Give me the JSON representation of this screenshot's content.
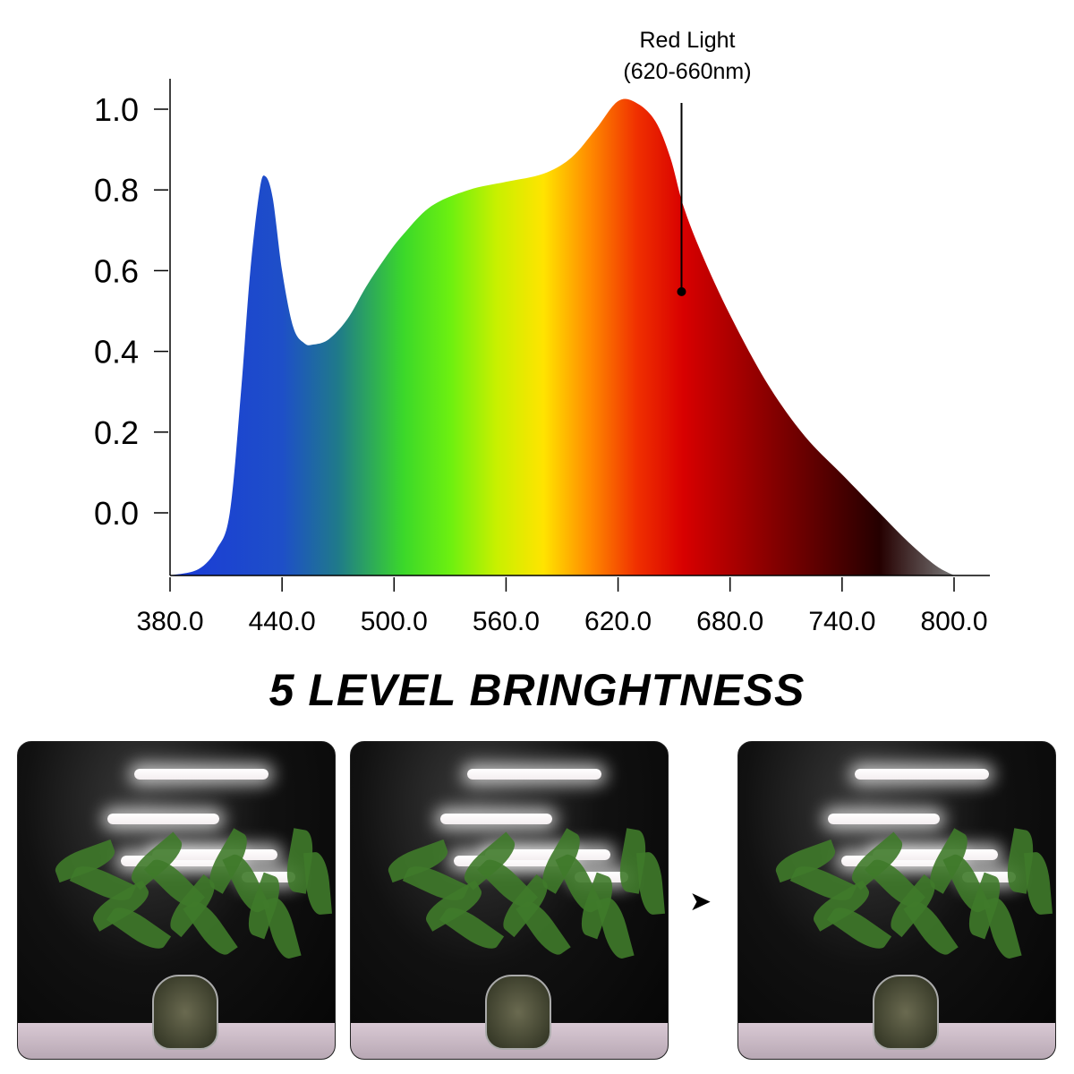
{
  "chart_data": {
    "type": "area",
    "xlim": [
      380,
      820
    ],
    "ylim": [
      -0.155,
      1.07
    ],
    "x_ticks": [
      "380.0",
      "440.0",
      "500.0",
      "560.0",
      "620.0",
      "680.0",
      "740.0",
      "800.0"
    ],
    "y_ticks": [
      "0.0",
      "0.2",
      "0.4",
      "0.6",
      "0.8",
      "1.0"
    ],
    "grid": false,
    "points": [
      [
        380,
        -0.155
      ],
      [
        395,
        -0.14
      ],
      [
        405,
        -0.09
      ],
      [
        412,
        0.0
      ],
      [
        418,
        0.3
      ],
      [
        423,
        0.6
      ],
      [
        428,
        0.8
      ],
      [
        431,
        0.834
      ],
      [
        435,
        0.78
      ],
      [
        440,
        0.6
      ],
      [
        446,
        0.46
      ],
      [
        452,
        0.42
      ],
      [
        457,
        0.417
      ],
      [
        465,
        0.43
      ],
      [
        475,
        0.48
      ],
      [
        485,
        0.56
      ],
      [
        495,
        0.63
      ],
      [
        505,
        0.69
      ],
      [
        520,
        0.76
      ],
      [
        540,
        0.8
      ],
      [
        560,
        0.82
      ],
      [
        580,
        0.84
      ],
      [
        595,
        0.88
      ],
      [
        608,
        0.95
      ],
      [
        620,
        1.02
      ],
      [
        630,
        1.015
      ],
      [
        640,
        0.97
      ],
      [
        648,
        0.88
      ],
      [
        655,
        0.76
      ],
      [
        665,
        0.64
      ],
      [
        680,
        0.49
      ],
      [
        700,
        0.32
      ],
      [
        720,
        0.19
      ],
      [
        740,
        0.095
      ],
      [
        760,
        0.0
      ],
      [
        775,
        -0.07
      ],
      [
        790,
        -0.13
      ],
      [
        800,
        -0.155
      ]
    ],
    "annotation": {
      "label_line1": "Red Light",
      "label_line2": "(620-660nm)",
      "x": 654,
      "y": 0.548
    },
    "gradient": [
      [
        380,
        "#1a3ad8"
      ],
      [
        440,
        "#1e4fc8"
      ],
      [
        470,
        "#1f7a8a"
      ],
      [
        505,
        "#3bd82a"
      ],
      [
        530,
        "#6cf010"
      ],
      [
        555,
        "#c8f000"
      ],
      [
        580,
        "#ffe400"
      ],
      [
        605,
        "#ff8a00"
      ],
      [
        630,
        "#f03000"
      ],
      [
        655,
        "#d80000"
      ],
      [
        700,
        "#8a0000"
      ],
      [
        760,
        "#250000"
      ],
      [
        800,
        "#777"
      ]
    ]
  },
  "title": "5 LEVEL BRINGHTNESS",
  "arrow_icon": "arrow-right-icon"
}
